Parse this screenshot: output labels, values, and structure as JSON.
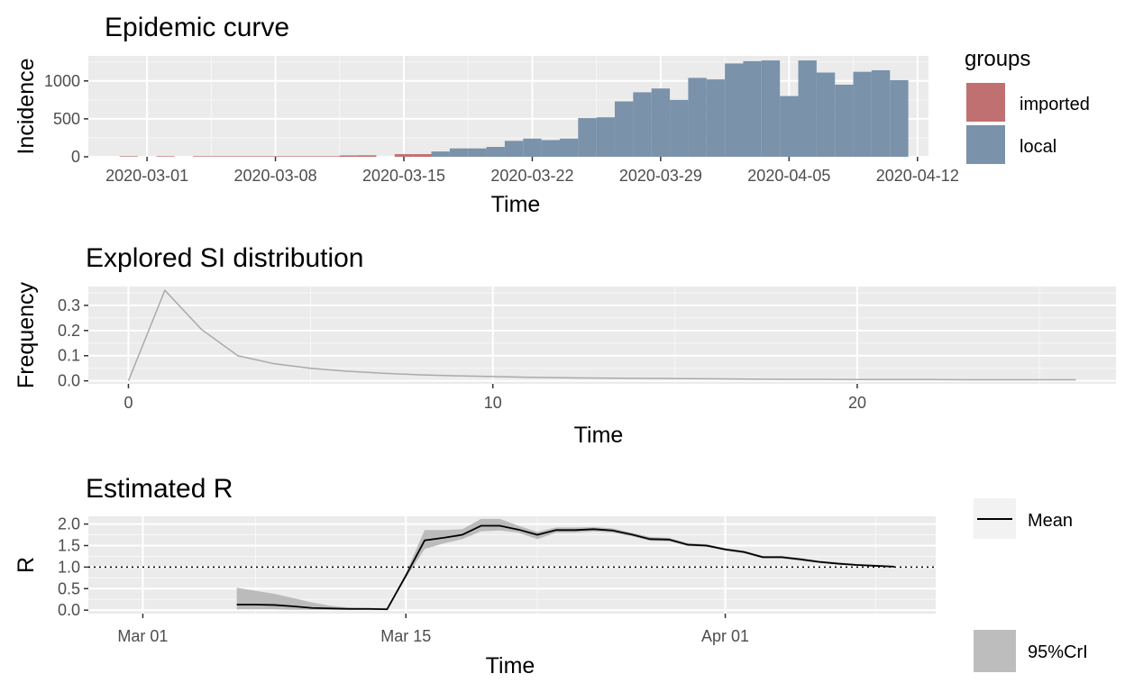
{
  "chart_data": [
    {
      "type": "bar",
      "title": "Epidemic curve",
      "xlabel": "Time",
      "ylabel": "Incidence",
      "x_start": "2020-02-28",
      "x_ticks": [
        "2020-03-01",
        "2020-03-08",
        "2020-03-15",
        "2020-03-22",
        "2020-03-29",
        "2020-04-05",
        "2020-04-12"
      ],
      "y_ticks": [
        "0",
        "500",
        "1000"
      ],
      "ylim": [
        0,
        1330
      ],
      "legend": {
        "title": "groups",
        "position": "right",
        "entries": [
          "imported",
          "local"
        ]
      },
      "series": [
        {
          "name": "imported",
          "color": "#c07070",
          "values": [
            0,
            8,
            0,
            8,
            0,
            8,
            8,
            8,
            8,
            8,
            8,
            8,
            8,
            18,
            20,
            0,
            35,
            35,
            0,
            0,
            0,
            0,
            0,
            0,
            0,
            0,
            0,
            0,
            0,
            0,
            0,
            0,
            0,
            0,
            0,
            0,
            0,
            0,
            0,
            0,
            0,
            0,
            0,
            0
          ]
        },
        {
          "name": "local",
          "color": "#7a92aa",
          "values": [
            0,
            0,
            0,
            0,
            0,
            0,
            0,
            0,
            0,
            0,
            0,
            0,
            0,
            0,
            0,
            0,
            0,
            0,
            70,
            110,
            110,
            130,
            210,
            240,
            220,
            240,
            510,
            520,
            730,
            850,
            900,
            750,
            1040,
            1020,
            1230,
            1260,
            1270,
            800,
            1270,
            1110,
            950,
            1120,
            1140,
            1010
          ]
        }
      ]
    },
    {
      "type": "line",
      "title": "Explored SI distribution",
      "xlabel": "Time",
      "ylabel": "Frequency",
      "x_ticks": [
        "0",
        "10",
        "20"
      ],
      "y_ticks": [
        "0.0",
        "0.1",
        "0.2",
        "0.3"
      ],
      "xlim": [
        -1.1,
        27.1
      ],
      "ylim": [
        -0.012,
        0.375
      ],
      "series": [
        {
          "color": "#aaaaaa",
          "x": [
            0,
            1,
            2,
            3,
            4,
            5,
            6,
            7,
            8,
            9,
            10,
            11,
            12,
            13,
            14,
            15,
            16,
            17,
            18,
            19,
            20,
            21,
            22,
            23,
            24,
            25,
            26
          ],
          "values": [
            0,
            0.36,
            0.205,
            0.1,
            0.068,
            0.05,
            0.038,
            0.03,
            0.024,
            0.02,
            0.017,
            0.014,
            0.012,
            0.011,
            0.01,
            0.009,
            0.008,
            0.007,
            0.006,
            0.006,
            0.005,
            0.005,
            0.005,
            0.004,
            0.004,
            0.004,
            0.004
          ]
        }
      ]
    },
    {
      "type": "line",
      "title": "Estimated R",
      "xlabel": "Time",
      "ylabel": "R",
      "x_start": "2020-02-28",
      "x_ticks": [
        "Mar 01",
        "Mar 15",
        "Apr 01"
      ],
      "y_ticks": [
        "0.0",
        "0.5",
        "1.0",
        "1.5",
        "2.0"
      ],
      "ylim": [
        -0.08,
        2.18
      ],
      "reference_line": 1.0,
      "legend": {
        "position": "right",
        "entries": [
          "Mean",
          "95%CrI"
        ]
      },
      "series": [
        {
          "name": "Mean",
          "color": "#000000",
          "x": [
            7,
            8,
            9,
            10,
            11,
            12,
            13,
            14,
            15,
            16,
            17,
            18,
            19,
            20,
            21,
            22,
            23,
            24,
            25,
            26,
            27,
            28,
            29,
            30,
            31,
            32,
            33,
            34,
            35,
            36,
            37,
            38,
            39,
            40,
            41,
            42
          ],
          "values": [
            0.13,
            0.13,
            0.12,
            0.09,
            0.05,
            0.04,
            0.03,
            0.03,
            0.02,
            0.8,
            1.62,
            1.68,
            1.75,
            1.96,
            1.96,
            1.87,
            1.75,
            1.86,
            1.86,
            1.88,
            1.85,
            1.76,
            1.65,
            1.64,
            1.52,
            1.5,
            1.41,
            1.35,
            1.23,
            1.23,
            1.18,
            1.12,
            1.08,
            1.05,
            1.03,
            1.01
          ]
        },
        {
          "name": "95%CrI",
          "color": "#bbbbbb",
          "x": [
            7,
            8,
            9,
            10,
            11,
            12,
            13,
            14,
            15,
            16,
            17,
            18,
            19,
            20,
            21,
            22,
            23,
            24,
            25,
            26,
            27,
            28,
            29,
            30,
            31,
            32,
            33,
            34,
            35,
            36,
            37,
            38,
            39,
            40,
            41,
            42
          ],
          "lower": [
            0.02,
            0.02,
            0.02,
            0.01,
            0.01,
            0.005,
            0.005,
            0.005,
            0.005,
            0.75,
            1.42,
            1.55,
            1.65,
            1.83,
            1.85,
            1.8,
            1.65,
            1.8,
            1.8,
            1.83,
            1.8,
            1.72,
            1.61,
            1.6,
            1.49,
            1.47,
            1.38,
            1.32,
            1.2,
            1.2,
            1.15,
            1.1,
            1.06,
            1.03,
            1.01,
            0.99
          ],
          "upper": [
            0.52,
            0.45,
            0.38,
            0.28,
            0.18,
            0.1,
            0.06,
            0.05,
            0.05,
            0.86,
            1.86,
            1.86,
            1.88,
            2.12,
            2.12,
            1.96,
            1.82,
            1.92,
            1.92,
            1.93,
            1.9,
            1.8,
            1.7,
            1.68,
            1.56,
            1.53,
            1.44,
            1.38,
            1.26,
            1.26,
            1.21,
            1.15,
            1.11,
            1.07,
            1.05,
            1.03
          ]
        }
      ]
    }
  ]
}
